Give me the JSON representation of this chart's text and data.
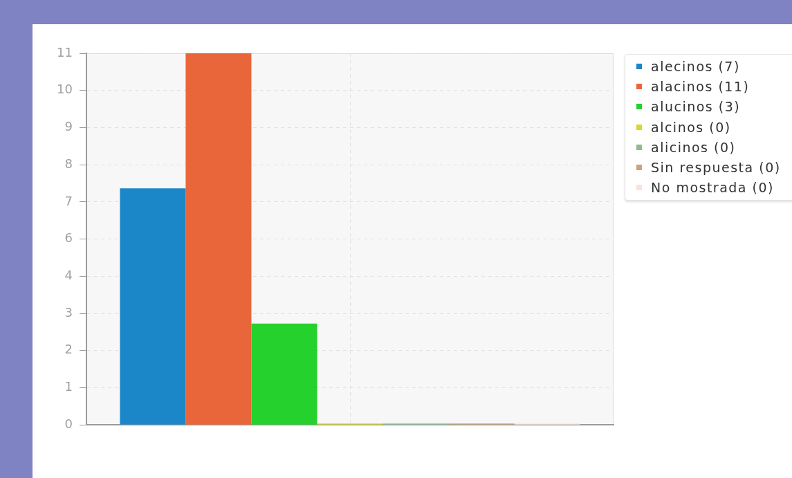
{
  "chart_data": {
    "type": "bar",
    "categories": [
      null
    ],
    "series": [
      {
        "name": "alecinos (7)",
        "color": "#1b87c9",
        "values": [
          7
        ]
      },
      {
        "name": "alacinos (11)",
        "color": "#e9663b",
        "values": [
          11
        ]
      },
      {
        "name": "alucinos (3)",
        "color": "#25d12c",
        "values": [
          3
        ]
      },
      {
        "name": "alcinos (0)",
        "color": "#d9d62c",
        "values": [
          0
        ]
      },
      {
        "name": "alicinos (0)",
        "color": "#8fbc8f",
        "values": [
          0
        ]
      },
      {
        "name": "Sin respuesta (0)",
        "color": "#c9a47e",
        "values": [
          0
        ]
      },
      {
        "name": "No mostrada (0)",
        "color": "#fbe2da",
        "values": [
          0
        ]
      }
    ],
    "ylim": [
      0,
      11
    ],
    "yticks": [
      0,
      {
        "value": 1.1,
        "label": "1"
      },
      {
        "value": 2.2,
        "label": "2"
      },
      {
        "value": 3.3,
        "label": "3"
      },
      {
        "value": 4.4,
        "label": "4"
      },
      {
        "value": 5.5,
        "label": "6"
      },
      {
        "value": 6.6,
        "label": "7"
      },
      {
        "value": 7.7,
        "label": "8"
      },
      {
        "value": 8.8,
        "label": "9"
      },
      {
        "value": 9.9,
        "label": "10"
      },
      11
    ],
    "grid": true,
    "legend": "right",
    "tick_labels": "y"
  }
}
